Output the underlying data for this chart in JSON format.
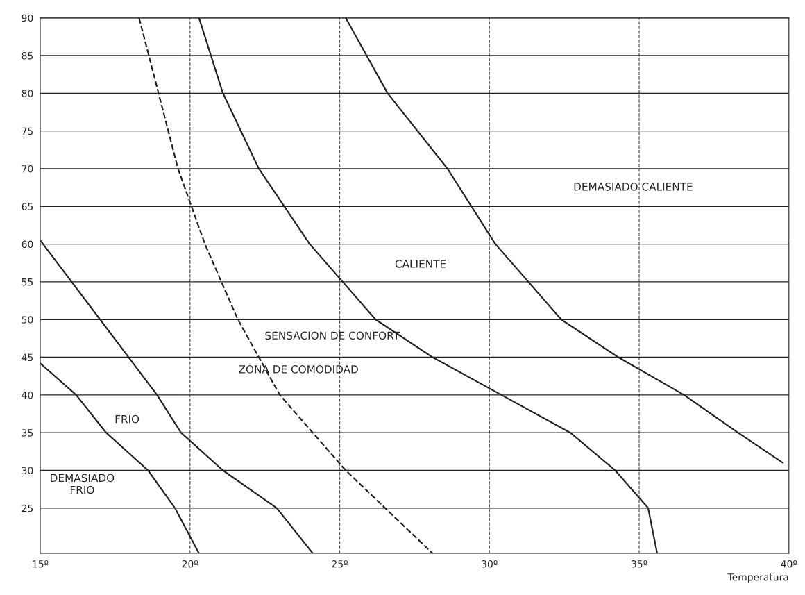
{
  "chart_data": {
    "type": "line",
    "xlabel": "Temperatura",
    "xlim": [
      15,
      40
    ],
    "ylim": [
      19,
      90
    ],
    "xticks": [
      {
        "value": 15,
        "label": "15º"
      },
      {
        "value": 20,
        "label": "20º"
      },
      {
        "value": 25,
        "label": "25º"
      },
      {
        "value": 30,
        "label": "30º"
      },
      {
        "value": 35,
        "label": "35º"
      },
      {
        "value": 40,
        "label": "40º"
      }
    ],
    "yticks": [
      25,
      30,
      35,
      40,
      45,
      50,
      55,
      60,
      65,
      70,
      75,
      80,
      85,
      90
    ],
    "grid": "y",
    "series": [
      {
        "color": "#222222",
        "line_style": "solid",
        "x": [
          15,
          16.2,
          17.2,
          18.6,
          19.5,
          20.3
        ],
        "values": [
          44.2,
          40,
          35,
          30,
          25,
          19
        ]
      },
      {
        "color": "#222222",
        "line_style": "solid",
        "x": [
          15,
          17.0,
          18.9,
          19.7,
          21.1,
          22.9,
          24.1
        ],
        "values": [
          60.5,
          50,
          40,
          35,
          30,
          25,
          19
        ]
      },
      {
        "color": "#222222",
        "line_style": "dashed",
        "x": [
          18.3,
          19.6,
          20.5,
          21.6,
          23.0,
          25.2,
          28.1
        ],
        "values": [
          90,
          70,
          60,
          50,
          40,
          30,
          19
        ]
      },
      {
        "color": "#222222",
        "line_style": "solid",
        "x": [
          20.3,
          21.1,
          22.3,
          24.0,
          26.2,
          28.1,
          30.4,
          32.7,
          34.2,
          35.3,
          35.6
        ],
        "values": [
          90,
          80,
          70,
          60,
          50,
          45,
          40,
          35,
          30,
          25,
          19
        ]
      },
      {
        "color": "#222222",
        "line_style": "solid",
        "x": [
          25.2,
          26.6,
          28.6,
          30.2,
          32.4,
          34.3,
          36.5,
          38.3,
          39.8
        ],
        "values": [
          90,
          80,
          70,
          60,
          50,
          45,
          40,
          35,
          31
        ]
      }
    ],
    "ref_lines": [
      {
        "axis": "x",
        "value": 20,
        "color": "#555555",
        "line_style": "dashed"
      },
      {
        "axis": "x",
        "value": 25,
        "color": "#555555",
        "line_style": "dashed"
      },
      {
        "axis": "x",
        "value": 30,
        "color": "#555555",
        "line_style": "dashed"
      },
      {
        "axis": "x",
        "value": 35,
        "color": "#555555",
        "line_style": "dashed"
      }
    ],
    "annotations": [
      "DEMASIADO CALIENTE",
      "CALIENTE",
      "SENSACION DE CONFORT",
      "ZONA DE COMODIDAD",
      "FRIO",
      "DEMASIADO\nFRIO"
    ]
  }
}
